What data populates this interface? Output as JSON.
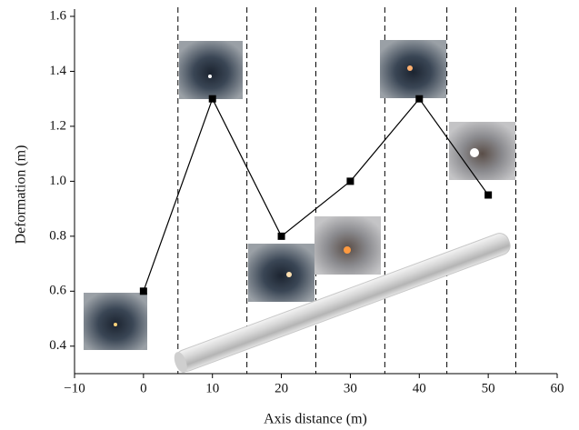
{
  "chart_data": {
    "type": "line",
    "x_label": "Axis distance (m)",
    "y_label": "Deformation (m)",
    "x": [
      0,
      10,
      20,
      30,
      40,
      50
    ],
    "values": [
      0.6,
      1.3,
      0.8,
      1.0,
      1.3,
      0.95
    ],
    "color": "#000000",
    "xlim": [
      -10,
      60
    ],
    "xticks": [
      {
        "value": -10,
        "label": "−10"
      },
      0,
      10,
      20,
      30,
      40,
      50,
      60
    ],
    "ylim": [
      0.3,
      1.6
    ],
    "yticks": [
      0.4,
      0.6,
      0.8,
      {
        "value": 1.0,
        "label": "1.0"
      },
      1.2,
      1.4,
      1.6
    ],
    "vlines": [
      5,
      15,
      25,
      35,
      44,
      54
    ]
  }
}
